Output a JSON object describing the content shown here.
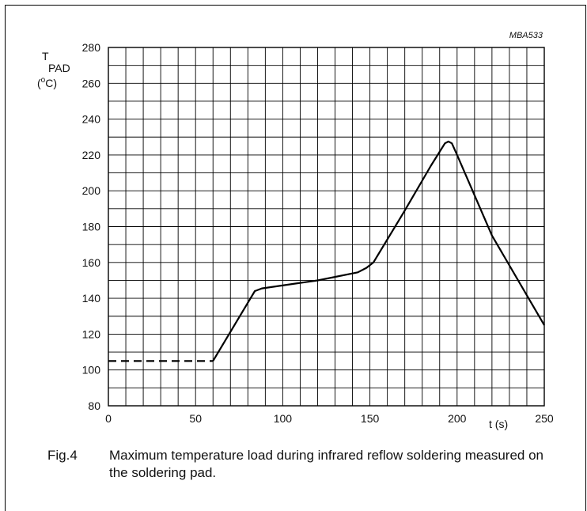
{
  "chart_data": {
    "type": "line",
    "code": "MBA533",
    "ylabel": {
      "main": "T",
      "sub": "PAD",
      "unit_open": "(",
      "unit_sup": "o",
      "unit_close": "C)"
    },
    "xlabel": "t (s)",
    "xlim": [
      0,
      250
    ],
    "ylim": [
      80,
      280
    ],
    "x_ticks": [
      "0",
      "50",
      "100",
      "150",
      "200",
      "250"
    ],
    "y_ticks": [
      "80",
      "100",
      "120",
      "140",
      "160",
      "180",
      "200",
      "220",
      "240",
      "260",
      "280"
    ],
    "grid": true,
    "series": [
      {
        "style": "dashed",
        "points": [
          [
            0,
            105
          ],
          [
            60,
            105
          ]
        ]
      },
      {
        "style": "solid",
        "points": [
          [
            60,
            105
          ],
          [
            84,
            144
          ],
          [
            88,
            145.5
          ],
          [
            120,
            150
          ],
          [
            143,
            154.5
          ],
          [
            148,
            157
          ],
          [
            152,
            160
          ],
          [
            170,
            189
          ],
          [
            185,
            214
          ],
          [
            193,
            226.5
          ],
          [
            195,
            227.5
          ],
          [
            197,
            226.5
          ],
          [
            200,
            220
          ],
          [
            220,
            175
          ],
          [
            250,
            125
          ]
        ]
      }
    ]
  },
  "caption": {
    "number": "Fig.4",
    "text": "Maximum temperature load during infrared reflow soldering measured on the soldering pad."
  }
}
